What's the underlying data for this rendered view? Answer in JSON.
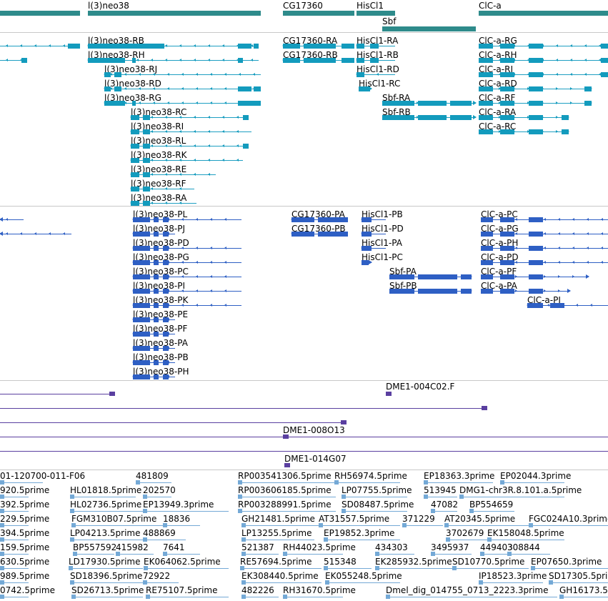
{
  "colors": {
    "gene": "#2e8b8b",
    "rna_line": "#1e9fc2",
    "rna_exon": "#139bbd",
    "cds": "#2e5fc4",
    "clone": "#5a3fa0",
    "est": "#74a9d6",
    "separator": "#c8c8c8"
  },
  "tracks": {
    "genes": {
      "features": [
        {
          "label": "l(3)neo38"
        },
        {
          "label": "CG17360"
        },
        {
          "label": "HisCl1"
        },
        {
          "label": "Sbf"
        },
        {
          "label": "ClC-a"
        }
      ]
    },
    "transcripts": {
      "features": [
        {
          "label": "l(3)neo38-RB"
        },
        {
          "label": "l(3)neo38-RH"
        },
        {
          "label": "l(3)neo38-RJ"
        },
        {
          "label": "l(3)neo38-RD"
        },
        {
          "label": "l(3)neo38-RG"
        },
        {
          "label": "l(3)neo38-RC"
        },
        {
          "label": "l(3)neo38-RI"
        },
        {
          "label": "l(3)neo38-RL"
        },
        {
          "label": "l(3)neo38-RK"
        },
        {
          "label": "l(3)neo38-RE"
        },
        {
          "label": "l(3)neo38-RF"
        },
        {
          "label": "l(3)neo38-RA"
        },
        {
          "label": "CG17360-RA"
        },
        {
          "label": "CG17360-RB"
        },
        {
          "label": "HisCl1-RA"
        },
        {
          "label": "HisCl1-RB"
        },
        {
          "label": "HisCl1-RD"
        },
        {
          "label": "HisCl1-RC"
        },
        {
          "label": "Sbf-RA"
        },
        {
          "label": "Sbf-RB"
        },
        {
          "label": "ClC-a-RG"
        },
        {
          "label": "ClC-a-RH"
        },
        {
          "label": "ClC-a-RI"
        },
        {
          "label": "ClC-a-RD"
        },
        {
          "label": "ClC-a-RF"
        },
        {
          "label": "ClC-a-RA"
        },
        {
          "label": "ClC-a-RC"
        }
      ]
    },
    "proteins": {
      "features": [
        {
          "label": "l(3)neo38-PL"
        },
        {
          "label": "l(3)neo38-PJ"
        },
        {
          "label": "l(3)neo38-PD"
        },
        {
          "label": "l(3)neo38-PG"
        },
        {
          "label": "l(3)neo38-PC"
        },
        {
          "label": "l(3)neo38-PI"
        },
        {
          "label": "l(3)neo38-PK"
        },
        {
          "label": "l(3)neo38-PE"
        },
        {
          "label": "l(3)neo38-PF"
        },
        {
          "label": "l(3)neo38-PA"
        },
        {
          "label": "l(3)neo38-PB"
        },
        {
          "label": "l(3)neo38-PH"
        },
        {
          "label": "CG17360-PA"
        },
        {
          "label": "CG17360-PB"
        },
        {
          "label": "HisCl1-PB"
        },
        {
          "label": "HisCl1-PD"
        },
        {
          "label": "HisCl1-PA"
        },
        {
          "label": "HisCl1-PC"
        },
        {
          "label": "Sbf-PA"
        },
        {
          "label": "Sbf-PB"
        },
        {
          "label": "ClC-a-PC"
        },
        {
          "label": "ClC-a-PG"
        },
        {
          "label": "ClC-a-PH"
        },
        {
          "label": "ClC-a-PD"
        },
        {
          "label": "ClC-a-PF"
        },
        {
          "label": "ClC-a-PA"
        },
        {
          "label": "ClC-a-PI"
        }
      ]
    },
    "clones": {
      "features": [
        {
          "label": "DME1-004C02.F"
        },
        {
          "label": "DME1-008O13"
        },
        {
          "label": "DME1-014G07"
        }
      ]
    },
    "ests": {
      "features": [
        {
          "label": "01-120700-011-F06"
        },
        {
          "label": "481809"
        },
        {
          "label": "RP003541306.5prime"
        },
        {
          "label": "RH56974.5prime"
        },
        {
          "label": "EP18363.3prime"
        },
        {
          "label": "EP02044.3prime"
        },
        {
          "label": "920.5prime"
        },
        {
          "label": "HL01818.5prime"
        },
        {
          "label": "202570"
        },
        {
          "label": "RP003606185.5prime"
        },
        {
          "label": "LP07755.5prime"
        },
        {
          "label": "513945"
        },
        {
          "label": "DMG1-chr3R.8.101.a.5prime"
        },
        {
          "label": "392.5prime"
        },
        {
          "label": "HL02736.5prime"
        },
        {
          "label": "EP13949.3prime"
        },
        {
          "label": "RP003288991.5prime"
        },
        {
          "label": "SD08487.5prime"
        },
        {
          "label": "47082"
        },
        {
          "label": "BP554659"
        },
        {
          "label": "229.5prime"
        },
        {
          "label": "FGM310B07.5prime"
        },
        {
          "label": "18836"
        },
        {
          "label": "GH21481.5prime"
        },
        {
          "label": "AT31557.5prime"
        },
        {
          "label": "371229"
        },
        {
          "label": "AT20345.5prime"
        },
        {
          "label": "FGC024A10.3prime"
        },
        {
          "label": "394.5prime"
        },
        {
          "label": "LP04213.5prime"
        },
        {
          "label": "488869"
        },
        {
          "label": "LP13255.5prime"
        },
        {
          "label": "EP19852.3prime"
        },
        {
          "label": "3702679"
        },
        {
          "label": "EK158048.5prime"
        },
        {
          "label": "159.5prime"
        },
        {
          "label": "BP557592"
        },
        {
          "label": "415982"
        },
        {
          "label": "7641"
        },
        {
          "label": "521387"
        },
        {
          "label": "RH44023.5prime"
        },
        {
          "label": "434303"
        },
        {
          "label": "3495937"
        },
        {
          "label": "449403"
        },
        {
          "label": "308844"
        },
        {
          "label": "630.5prime"
        },
        {
          "label": "LD17930.5prime"
        },
        {
          "label": "EK064062.5prime"
        },
        {
          "label": "RE57694.5prime"
        },
        {
          "label": "515348"
        },
        {
          "label": "EK285932.5prime"
        },
        {
          "label": "SD10770.5prime"
        },
        {
          "label": "EP07650.3prime"
        },
        {
          "label": "989.5prime"
        },
        {
          "label": "SD18396.5prime"
        },
        {
          "label": "72922"
        },
        {
          "label": "EK308440.5prime"
        },
        {
          "label": "EK055248.5prime"
        },
        {
          "label": "IP18523.3prime"
        },
        {
          "label": "SD17305.5prime"
        },
        {
          "label": "0742.5prime"
        },
        {
          "label": "SD26713.5prime"
        },
        {
          "label": "RE75107.5prime"
        },
        {
          "label": "482226"
        },
        {
          "label": "RH31670.5prime"
        },
        {
          "label": "Dmel_dig_014755_0713_2223.3prime"
        },
        {
          "label": "GH16173.5prime"
        }
      ]
    }
  }
}
